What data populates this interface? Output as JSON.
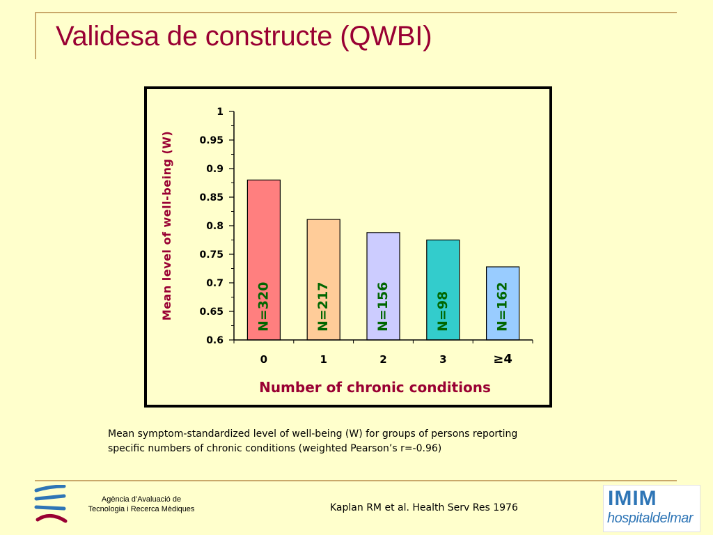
{
  "slide": {
    "title": "Validesa de constructe (QWBI)",
    "caption_line1": "Mean symptom-standardized level of well-being (W) for groups of persons reporting",
    "caption_line2": "specific numbers of chronic conditions (weighted Pearson’s r=-0.96)",
    "agency_line1": "Agència d’Avaluació de",
    "agency_line2": "Tecnologia i Recerca Mèdiques",
    "reference": "Kaplan RM et al. Health Serv Res 1976",
    "logo_right_line1": "IMIM",
    "logo_right_line2": "hospitaldelmar"
  },
  "chart_data": {
    "type": "bar",
    "categories": [
      "0",
      "1",
      "2",
      "3",
      "≥4"
    ],
    "values": [
      0.88,
      0.811,
      0.788,
      0.775,
      0.728
    ],
    "bar_labels": [
      "N=320",
      "N=217",
      "N=156",
      "N=98",
      "N=162"
    ],
    "bar_colors": [
      "#FF7F7F",
      "#FFCC99",
      "#CCCCFF",
      "#33CCCC",
      "#99CCFF"
    ],
    "xlabel": "Number of chronic conditions",
    "ylabel": "Mean level of well-being (W)",
    "ylim": [
      0.6,
      1.0
    ],
    "yticks": [
      "0.6",
      "0.65",
      "0.7",
      "0.75",
      "0.8",
      "0.85",
      "0.9",
      "0.95",
      "1"
    ],
    "grid": false,
    "legend": "none",
    "colors": {
      "axis_label": "#990033",
      "bar_label": "#006600",
      "outline": "#000000"
    }
  }
}
